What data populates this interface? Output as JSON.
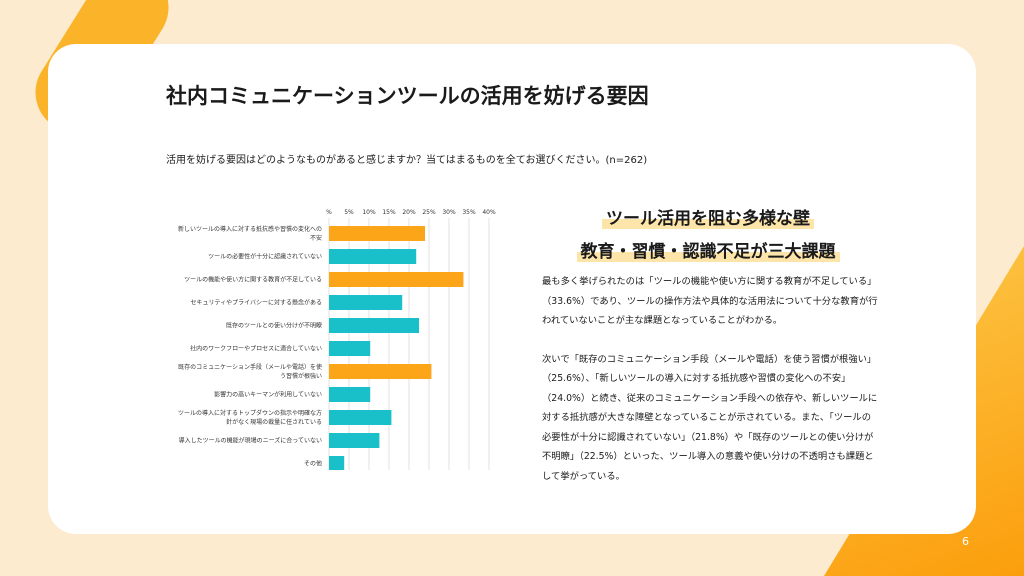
{
  "title": "社内コミュニケーションツールの活用を妨げる要因",
  "question": "活用を妨げる要因はどのようなものがあると感じますか？当てはまるものを全てお選びください。(n=262)",
  "summary": {
    "line1": "ツール活用を阻む多様な壁",
    "line2": "教育・習慣・認識不足が三大課題",
    "p1": "最も多く挙げられたのは「ツールの機能や使い方に関する教育が不足している」（33.6%）であり、ツールの操作方法や具体的な活用法について十分な教育が行われていないことが主な課題となっていることがわかる。",
    "p2": "次いで「既存のコミュニケーション手段（メールや電話）を使う習慣が根強い」（25.6%）、「新しいツールの導入に対する抵抗感や習慣の変化への不安」（24.0%）と続き、従来のコミュニケーション手段への依存や、新しいツールに対する抵抗感が大きな障壁となっていることが示されている。また、「ツールの必要性が十分に認識されていない」（21.8%）や「既存のツールとの使い分けが不明瞭」（22.5%）といった、ツール導入の意義や使い分けの不透明さも課題として挙がっている。"
  },
  "page_number": "6",
  "colors": {
    "orange": "#fca518",
    "teal": "#19bfc9",
    "accent": "#fbb429"
  },
  "chart_data": {
    "type": "bar",
    "orientation": "horizontal",
    "categories": [
      [
        "新しいツールの導入に対する抵抗感や習慣の変化への",
        "不安"
      ],
      [
        "ツールの必要性が十分に認識されていない"
      ],
      [
        "ツールの機能や使い方に関する教育が不足している"
      ],
      [
        "セキュリティやプライバシーに対する懸念がある"
      ],
      [
        "既存のツールとの使い分けが不明瞭"
      ],
      [
        "社内のワークフローやプロセスに適合していない"
      ],
      [
        "既存のコミュニケーション手段（メールや電話）を使",
        "う習慣が根強い"
      ],
      [
        "影響力の高いキーマンが利用していない"
      ],
      [
        "ツールの導入に対するトップダウンの指示や明確な方",
        "針がなく現場の裁量に任されている"
      ],
      [
        "導入したツールの機能が現場のニーズに合っていない"
      ],
      [
        "その他"
      ]
    ],
    "values": [
      24.0,
      21.8,
      33.6,
      18.3,
      22.5,
      10.3,
      25.6,
      10.3,
      15.6,
      12.6,
      3.8
    ],
    "highlight": [
      true,
      false,
      true,
      false,
      false,
      false,
      true,
      false,
      false,
      false,
      false
    ],
    "xticks": [
      "%",
      "5%",
      "10%",
      "15%",
      "20%",
      "25%",
      "30%",
      "35%",
      "40%"
    ],
    "xlim": [
      0,
      40
    ],
    "grid": true
  }
}
